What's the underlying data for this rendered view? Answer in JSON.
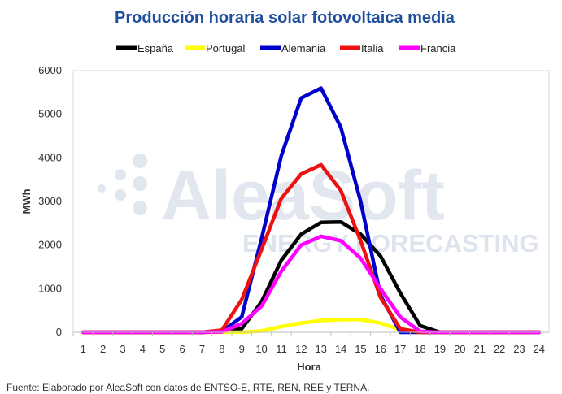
{
  "chart_data": {
    "type": "line",
    "title": "Producción horaria solar fotovoltaica media",
    "xlabel": "Hora",
    "ylabel": "MWh",
    "x": [
      1,
      2,
      3,
      4,
      5,
      6,
      7,
      8,
      9,
      10,
      11,
      12,
      13,
      14,
      15,
      16,
      17,
      18,
      19,
      20,
      21,
      22,
      23,
      24
    ],
    "ylim": [
      0,
      6000
    ],
    "yticks": [
      0,
      1000,
      2000,
      3000,
      4000,
      5000,
      6000
    ],
    "grid": false,
    "legend_position": "top",
    "series": [
      {
        "name": "España",
        "color": "#000000",
        "values": [
          0,
          0,
          0,
          0,
          0,
          0,
          0,
          20,
          80,
          700,
          1650,
          2250,
          2520,
          2530,
          2250,
          1750,
          900,
          150,
          0,
          0,
          0,
          0,
          0,
          0
        ]
      },
      {
        "name": "Portugal",
        "color": "#ffff00",
        "values": [
          0,
          0,
          0,
          0,
          0,
          0,
          0,
          0,
          0,
          30,
          130,
          210,
          270,
          290,
          290,
          210,
          60,
          0,
          0,
          0,
          0,
          0,
          0,
          0
        ]
      },
      {
        "name": "Alemania",
        "color": "#0000cc",
        "values": [
          0,
          0,
          0,
          0,
          0,
          0,
          0,
          20,
          350,
          2150,
          4050,
          5370,
          5600,
          4700,
          3000,
          850,
          0,
          0,
          0,
          0,
          0,
          0,
          0,
          0
        ]
      },
      {
        "name": "Italia",
        "color": "#ee1111",
        "values": [
          0,
          0,
          0,
          0,
          0,
          0,
          0,
          50,
          750,
          1900,
          3070,
          3630,
          3840,
          3250,
          2100,
          800,
          80,
          0,
          0,
          0,
          0,
          0,
          0,
          0
        ]
      },
      {
        "name": "Francia",
        "color": "#ff00ff",
        "values": [
          0,
          0,
          0,
          0,
          0,
          0,
          0,
          10,
          200,
          600,
          1400,
          2000,
          2200,
          2100,
          1700,
          1000,
          350,
          20,
          0,
          0,
          0,
          0,
          0,
          0
        ]
      }
    ]
  },
  "watermark": {
    "brand": "AleaSoft",
    "tagline": "ENERGY FORECASTING"
  },
  "footer": "Fuente:  Elaborado  por AleaSoft  con datos de ENTSO-E,  RTE, REN, REE y TERNA."
}
